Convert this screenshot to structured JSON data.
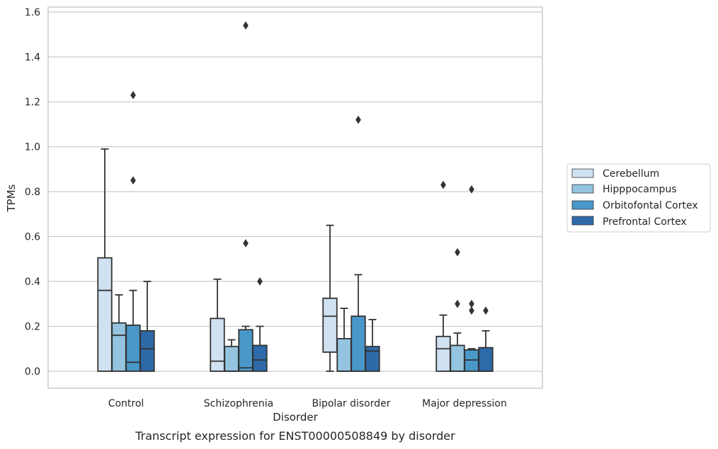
{
  "caption": "Transcript expression for ENST00000508849 by disorder",
  "chart_data": {
    "type": "box",
    "xlabel": "Disorder",
    "ylabel": "TPMs",
    "ylim": [
      -0.075,
      1.62
    ],
    "yticks": [
      0.0,
      0.2,
      0.4,
      0.6,
      0.8,
      1.0,
      1.2,
      1.4,
      1.6
    ],
    "ytick_labels": [
      "0.0",
      "0.2",
      "0.4",
      "0.6",
      "0.8",
      "1.0",
      "1.2",
      "1.4",
      "1.6"
    ],
    "grid": "horizontal",
    "legend_position": "right",
    "categories": [
      "Control",
      "Schizophrenia",
      "Bipolar disorder",
      "Major depression"
    ],
    "series": [
      {
        "name": "Cerebellum",
        "color": "#d0e1f2",
        "boxes": [
          {
            "whislo": 0.0,
            "q1": 0.0,
            "med": 0.36,
            "q3": 0.505,
            "whishi": 0.99,
            "fliers": []
          },
          {
            "whislo": 0.0,
            "q1": 0.0,
            "med": 0.045,
            "q3": 0.235,
            "whishi": 0.41,
            "fliers": []
          },
          {
            "whislo": 0.0,
            "q1": 0.085,
            "med": 0.245,
            "q3": 0.325,
            "whishi": 0.65,
            "fliers": []
          },
          {
            "whislo": 0.0,
            "q1": 0.0,
            "med": 0.1,
            "q3": 0.155,
            "whishi": 0.25,
            "fliers": [
              0.83
            ]
          }
        ]
      },
      {
        "name": "Hipppocampus",
        "color": "#94c4df",
        "boxes": [
          {
            "whislo": 0.0,
            "q1": 0.0,
            "med": 0.16,
            "q3": 0.215,
            "whishi": 0.34,
            "fliers": []
          },
          {
            "whislo": 0.0,
            "q1": 0.0,
            "med": 0.0,
            "q3": 0.11,
            "whishi": 0.14,
            "fliers": []
          },
          {
            "whislo": 0.0,
            "q1": 0.0,
            "med": 0.0,
            "q3": 0.145,
            "whishi": 0.28,
            "fliers": []
          },
          {
            "whislo": 0.0,
            "q1": 0.0,
            "med": 0.0,
            "q3": 0.115,
            "whishi": 0.17,
            "fliers": [
              0.53,
              0.3
            ]
          }
        ]
      },
      {
        "name": "Orbitofontal Cortex",
        "color": "#4a98c9",
        "boxes": [
          {
            "whislo": 0.0,
            "q1": 0.0,
            "med": 0.04,
            "q3": 0.205,
            "whishi": 0.36,
            "fliers": [
              1.23,
              0.85
            ]
          },
          {
            "whislo": 0.0,
            "q1": 0.0,
            "med": 0.015,
            "q3": 0.185,
            "whishi": 0.2,
            "fliers": [
              1.54,
              0.57
            ]
          },
          {
            "whislo": 0.0,
            "q1": 0.0,
            "med": 0.0,
            "q3": 0.245,
            "whishi": 0.43,
            "fliers": [
              1.12
            ]
          },
          {
            "whislo": 0.0,
            "q1": 0.0,
            "med": 0.05,
            "q3": 0.095,
            "whishi": 0.1,
            "fliers": [
              0.81,
              0.3,
              0.27
            ]
          }
        ]
      },
      {
        "name": "Prefrontal Cortex",
        "color": "#2e6aa8",
        "boxes": [
          {
            "whislo": 0.0,
            "q1": 0.0,
            "med": 0.1,
            "q3": 0.18,
            "whishi": 0.4,
            "fliers": []
          },
          {
            "whislo": 0.0,
            "q1": 0.0,
            "med": 0.05,
            "q3": 0.115,
            "whishi": 0.2,
            "fliers": [
              0.4
            ]
          },
          {
            "whislo": 0.0,
            "q1": 0.0,
            "med": 0.09,
            "q3": 0.11,
            "whishi": 0.23,
            "fliers": []
          },
          {
            "whislo": 0.0,
            "q1": 0.0,
            "med": 0.0,
            "q3": 0.105,
            "whishi": 0.18,
            "fliers": [
              0.27
            ]
          }
        ]
      }
    ]
  }
}
